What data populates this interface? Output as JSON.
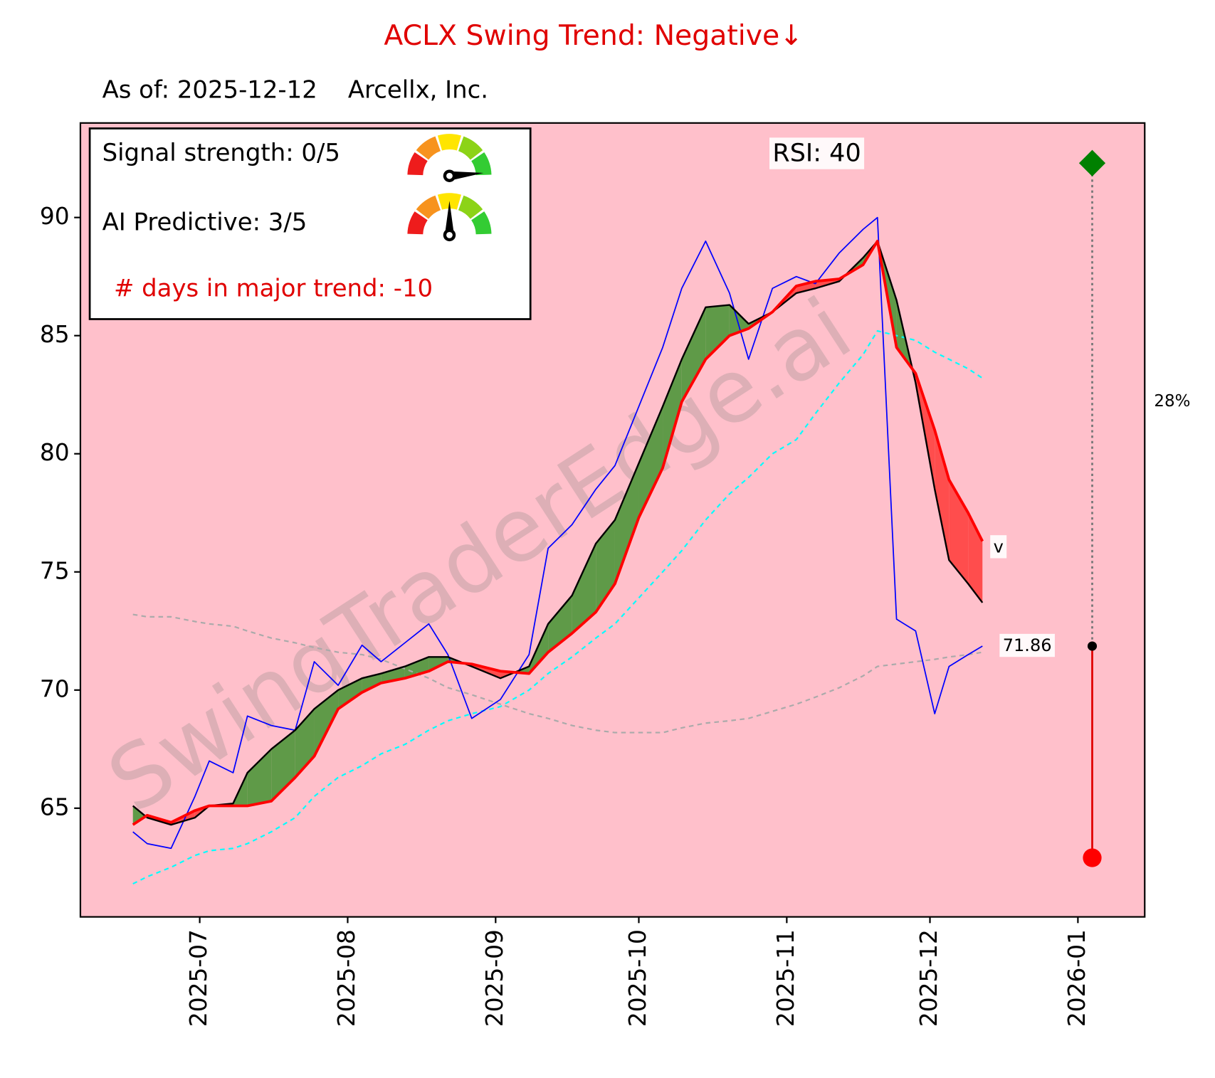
{
  "chart_data": {
    "type": "line",
    "title": "ACLX  Swing Trend: Negative↓",
    "subtitle": "As of: 2025-12-12    Arcellx, Inc.",
    "watermark": "SwingTraderEdge.ai",
    "info": {
      "signal": "Signal strength: 0/5",
      "ai": "AI Predictive: 3/5",
      "days": "# days in major trend: -10"
    },
    "rsi_label": "RSI:  40",
    "end_label": "v",
    "upside_label": "28%",
    "last_price": 71.86,
    "target_date": "2026-01-04",
    "target_high": 92.3,
    "target_low": 62.9,
    "background": "#ffc0cb",
    "fill_up": "#5f9a48",
    "fill_down": "#ff4d4d",
    "xlim": [
      "2025-06-06",
      "2026-01-15"
    ],
    "ylim": [
      60.4,
      94.0
    ],
    "yticks": [
      65,
      70,
      75,
      80,
      85,
      90
    ],
    "xticks": [
      {
        "value": "2025-07-01",
        "label": "2025-07"
      },
      {
        "value": "2025-08-01",
        "label": "2025-08"
      },
      {
        "value": "2025-09-01",
        "label": "2025-09"
      },
      {
        "value": "2025-10-01",
        "label": "2025-10"
      },
      {
        "value": "2025-11-01",
        "label": "2025-11"
      },
      {
        "value": "2025-12-01",
        "label": "2025-12"
      },
      {
        "value": "2026-01-01",
        "label": "2026-01"
      }
    ],
    "x": [
      "2025-06-17",
      "2025-06-20",
      "2025-06-25",
      "2025-06-30",
      "2025-07-03",
      "2025-07-08",
      "2025-07-11",
      "2025-07-16",
      "2025-07-21",
      "2025-07-25",
      "2025-07-30",
      "2025-08-04",
      "2025-08-08",
      "2025-08-13",
      "2025-08-18",
      "2025-08-22",
      "2025-08-27",
      "2025-09-02",
      "2025-09-08",
      "2025-09-12",
      "2025-09-17",
      "2025-09-22",
      "2025-09-26",
      "2025-10-01",
      "2025-10-06",
      "2025-10-10",
      "2025-10-15",
      "2025-10-20",
      "2025-10-24",
      "2025-10-29",
      "2025-11-03",
      "2025-11-07",
      "2025-11-12",
      "2025-11-17",
      "2025-11-20",
      "2025-11-24",
      "2025-11-28",
      "2025-12-02",
      "2025-12-05",
      "2025-12-09",
      "2025-12-12"
    ],
    "series": [
      {
        "color": "#aaaaaa",
        "dash": true,
        "width": 2,
        "values": [
          73.2,
          73.1,
          73.1,
          72.9,
          72.8,
          72.7,
          72.5,
          72.2,
          72.0,
          71.8,
          71.6,
          71.5,
          71.3,
          70.9,
          70.5,
          70.1,
          69.8,
          69.4,
          69.0,
          68.8,
          68.5,
          68.3,
          68.2,
          68.2,
          68.2,
          68.4,
          68.6,
          68.7,
          68.8,
          69.1,
          69.4,
          69.7,
          70.1,
          70.6,
          71.0,
          71.1,
          71.2,
          71.3,
          71.4,
          71.5,
          71.6
        ]
      },
      {
        "color": "#00ffff",
        "dash": true,
        "width": 2,
        "values": [
          61.8,
          62.1,
          62.5,
          63.0,
          63.2,
          63.3,
          63.5,
          64.0,
          64.6,
          65.5,
          66.3,
          66.8,
          67.3,
          67.7,
          68.3,
          68.7,
          69.0,
          69.3,
          70.0,
          70.7,
          71.4,
          72.2,
          72.8,
          73.9,
          75.0,
          75.9,
          77.2,
          78.3,
          79.0,
          80.0,
          80.6,
          81.7,
          83.0,
          84.2,
          85.2,
          85.0,
          84.8,
          84.3,
          84.0,
          83.6,
          83.2
        ]
      },
      {
        "color": "#0000ff",
        "dash": false,
        "width": 1.6,
        "values": [
          64.0,
          63.5,
          63.3,
          65.5,
          67.0,
          66.5,
          68.9,
          68.5,
          68.3,
          71.2,
          70.2,
          71.9,
          71.2,
          72.0,
          72.8,
          71.5,
          68.8,
          69.6,
          71.5,
          76.0,
          77.0,
          78.5,
          79.5,
          82.0,
          84.5,
          87.0,
          89.0,
          86.8,
          84.0,
          87.0,
          87.5,
          87.2,
          88.5,
          89.5,
          90.0,
          73.0,
          72.5,
          69.0,
          71.0,
          71.5,
          71.86
        ]
      },
      {
        "color": "#000000",
        "dash": false,
        "width": 2.2,
        "fast": true,
        "values": [
          65.1,
          64.6,
          64.3,
          64.6,
          65.1,
          65.2,
          66.5,
          67.5,
          68.3,
          69.2,
          70.0,
          70.5,
          70.7,
          71.0,
          71.4,
          71.4,
          71.0,
          70.5,
          71.0,
          72.8,
          74.0,
          76.2,
          77.2,
          79.6,
          82.0,
          84.0,
          86.2,
          86.3,
          85.5,
          86.0,
          86.8,
          87.0,
          87.3,
          88.3,
          89.0,
          86.5,
          83.0,
          78.5,
          75.5,
          74.5,
          73.7
        ]
      },
      {
        "color": "#ff0000",
        "dash": false,
        "width": 3.5,
        "slow": true,
        "values": [
          64.3,
          64.7,
          64.4,
          64.9,
          65.1,
          65.1,
          65.1,
          65.3,
          66.3,
          67.2,
          69.2,
          69.9,
          70.3,
          70.5,
          70.8,
          71.2,
          71.1,
          70.8,
          70.7,
          71.6,
          72.4,
          73.3,
          74.5,
          77.3,
          79.4,
          82.2,
          84.0,
          85.0,
          85.3,
          86.0,
          87.1,
          87.3,
          87.4,
          88.0,
          89.0,
          84.5,
          83.4,
          81.0,
          78.9,
          77.5,
          76.3
        ]
      }
    ]
  }
}
